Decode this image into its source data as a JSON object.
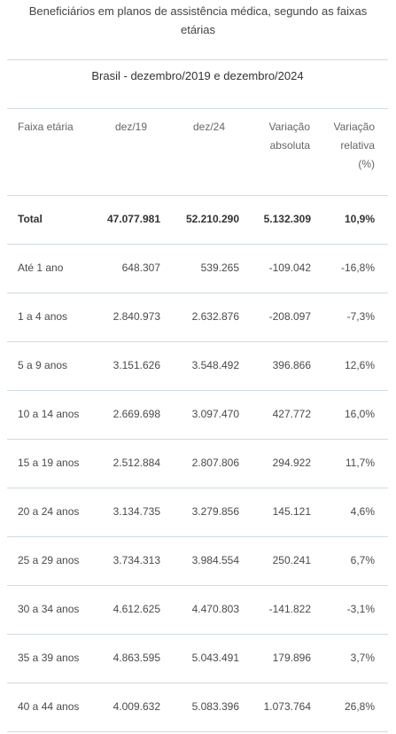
{
  "header": {
    "title": "Beneficiários em planos de assistência médica, segundo as faixas etárias",
    "subtitle": "Brasil - dezembro/2019 e dezembro/2024"
  },
  "table": {
    "columns": [
      "Faixa etária",
      "dez/19",
      "dez/24",
      "Variação absoluta",
      "Variação relativa (%)"
    ],
    "rows": [
      [
        "Total",
        "47.077.981",
        "52.210.290",
        "5.132.309",
        "10,9%"
      ],
      [
        "Até 1 ano",
        "648.307",
        "539.265",
        "-109.042",
        "-16,8%"
      ],
      [
        "1 a 4 anos",
        "2.840.973",
        "2.632.876",
        "-208.097",
        "-7,3%"
      ],
      [
        "5 a 9 anos",
        "3.151.626",
        "3.548.492",
        "396.866",
        "12,6%"
      ],
      [
        "10 a 14 anos",
        "2.669.698",
        "3.097.470",
        "427.772",
        "16,0%"
      ],
      [
        "15 a 19 anos",
        "2.512.884",
        "2.807.806",
        "294.922",
        "11,7%"
      ],
      [
        "20 a 24 anos",
        "3.134.735",
        "3.279.856",
        "145.121",
        "4,6%"
      ],
      [
        "25 a 29 anos",
        "3.734.313",
        "3.984.554",
        "250.241",
        "6,7%"
      ],
      [
        "30 a 34 anos",
        "4.612.625",
        "4.470.803",
        "-141.822",
        "-3,1%"
      ],
      [
        "35 a 39 anos",
        "4.863.595",
        "5.043.491",
        "179.896",
        "3,7%"
      ],
      [
        "40 a 44 anos",
        "4.009.632",
        "5.083.396",
        "1.073.764",
        "26,8%"
      ]
    ]
  }
}
